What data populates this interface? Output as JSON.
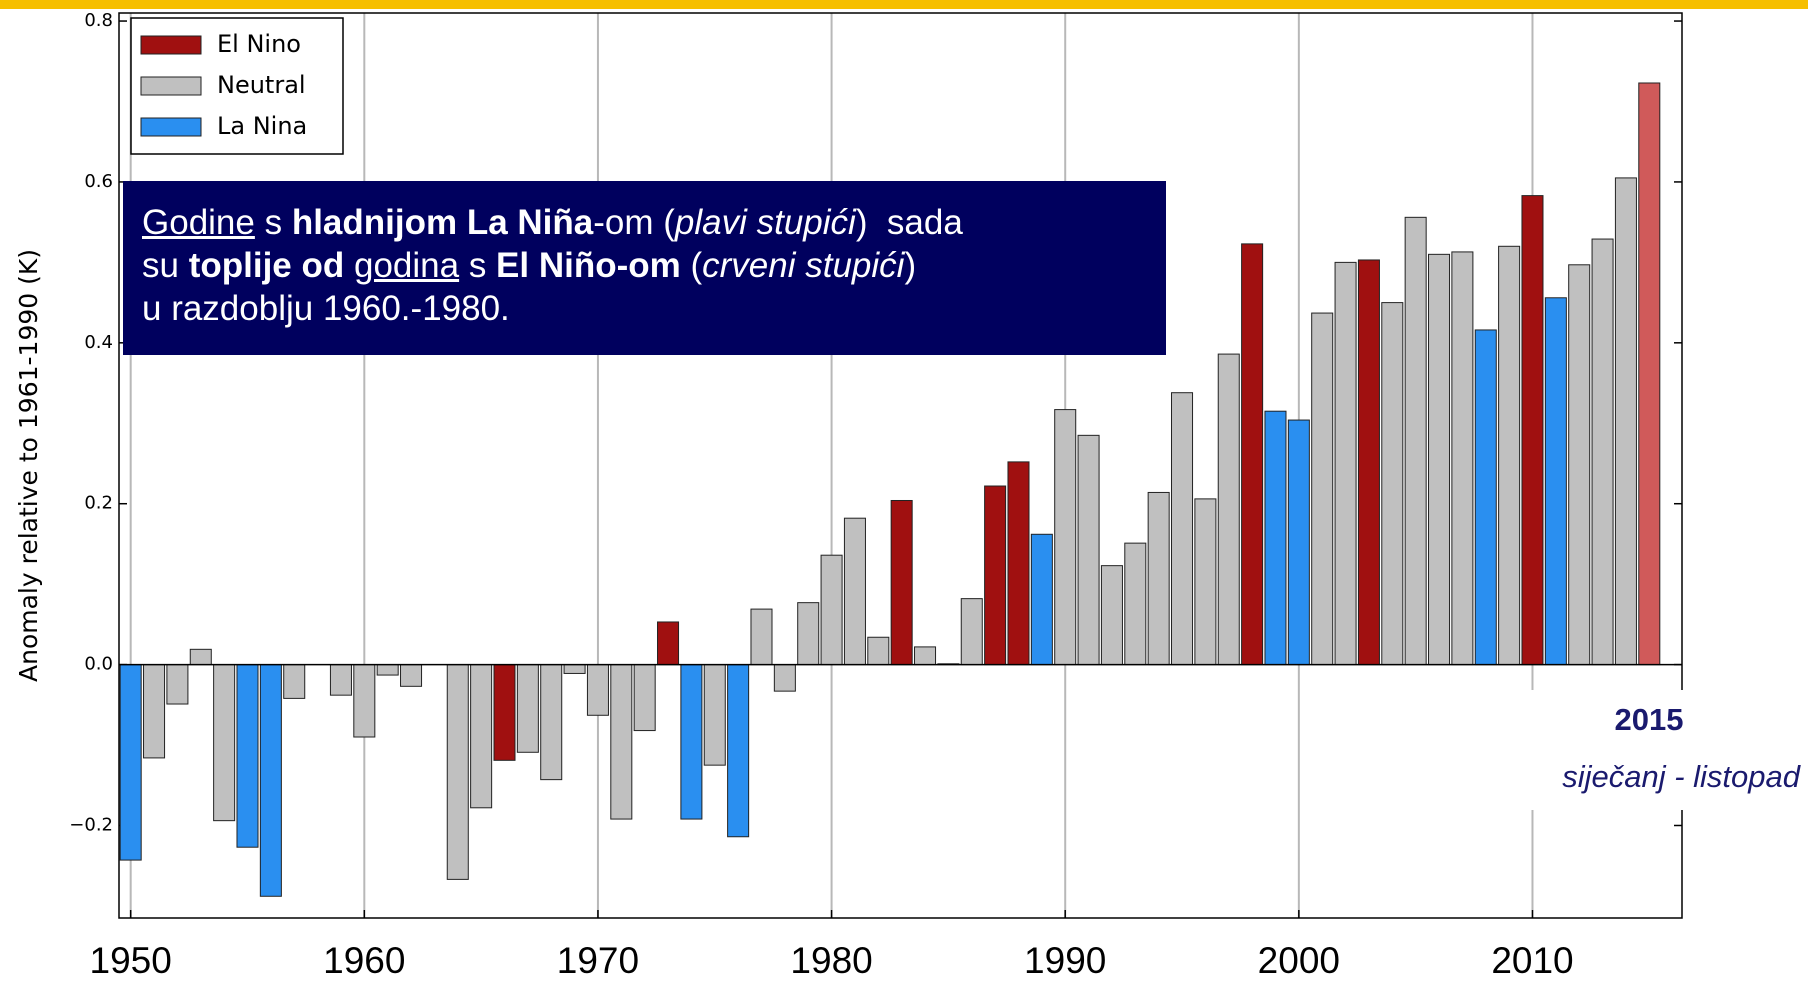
{
  "chart_data": {
    "type": "bar",
    "ylabel": "Anomaly relative to 1961-1990 (K)",
    "x": [
      1950,
      1951,
      1952,
      1953,
      1954,
      1955,
      1956,
      1957,
      1958,
      1959,
      1960,
      1961,
      1962,
      1963,
      1964,
      1965,
      1966,
      1967,
      1968,
      1969,
      1970,
      1971,
      1972,
      1973,
      1974,
      1975,
      1976,
      1977,
      1978,
      1979,
      1980,
      1981,
      1982,
      1983,
      1984,
      1985,
      1986,
      1987,
      1988,
      1989,
      1990,
      1991,
      1992,
      1993,
      1994,
      1995,
      1996,
      1997,
      1998,
      1999,
      2000,
      2001,
      2002,
      2003,
      2004,
      2005,
      2006,
      2007,
      2008,
      2009,
      2010,
      2011,
      2012,
      2013,
      2014,
      2015
    ],
    "series": [
      {
        "name": "El Nino",
        "color": "#a01010",
        "values": [
          null,
          null,
          null,
          null,
          null,
          null,
          null,
          null,
          null,
          null,
          null,
          null,
          null,
          null,
          null,
          null,
          -0.119,
          null,
          null,
          null,
          null,
          null,
          null,
          0.053,
          null,
          null,
          null,
          null,
          null,
          null,
          null,
          null,
          null,
          0.204,
          null,
          null,
          null,
          0.222,
          0.252,
          null,
          null,
          null,
          null,
          null,
          null,
          null,
          null,
          null,
          0.523,
          null,
          null,
          null,
          null,
          0.503,
          null,
          null,
          null,
          null,
          null,
          null,
          0.583,
          null,
          null,
          null,
          null,
          0.723
        ],
        "highlight": {
          "index": 65,
          "color": "#d05a5a"
        }
      },
      {
        "name": "Neutral",
        "color": "#c0c0c0",
        "values": [
          null,
          -0.116,
          -0.049,
          0.019,
          -0.194,
          null,
          null,
          -0.042,
          0.0,
          -0.038,
          -0.09,
          -0.013,
          -0.027,
          0.0,
          -0.267,
          -0.178,
          null,
          -0.109,
          -0.143,
          -0.011,
          -0.063,
          -0.192,
          -0.082,
          null,
          null,
          -0.125,
          null,
          0.069,
          -0.033,
          0.077,
          0.136,
          0.182,
          0.034,
          null,
          0.022,
          0.001,
          0.082,
          null,
          null,
          null,
          0.317,
          0.285,
          0.123,
          0.151,
          0.214,
          0.338,
          0.206,
          0.386,
          null,
          null,
          null,
          0.437,
          0.5,
          null,
          0.45,
          0.556,
          0.51,
          0.513,
          null,
          0.52,
          null,
          null,
          0.497,
          0.529,
          0.605,
          null
        ]
      },
      {
        "name": "La Nina",
        "color": "#2a8ff0",
        "values": [
          -0.243,
          null,
          null,
          null,
          null,
          -0.227,
          -0.288,
          null,
          null,
          null,
          null,
          null,
          null,
          null,
          null,
          null,
          null,
          null,
          null,
          null,
          null,
          null,
          null,
          null,
          -0.192,
          null,
          -0.214,
          null,
          null,
          null,
          null,
          null,
          null,
          null,
          null,
          null,
          null,
          null,
          null,
          0.162,
          null,
          null,
          null,
          null,
          null,
          null,
          null,
          null,
          null,
          0.315,
          0.304,
          null,
          null,
          null,
          null,
          null,
          null,
          null,
          0.416,
          null,
          null,
          0.456,
          null,
          null,
          null,
          null
        ]
      }
    ],
    "xlim": [
      1949.5,
      2016.4
    ],
    "xticks": [
      1950,
      1960,
      1970,
      1980,
      1990,
      2000,
      2010
    ],
    "ylim": [
      -0.315,
      0.81
    ],
    "yticks": [
      {
        "value": -0.2,
        "label": "−0.2"
      },
      {
        "value": 0,
        "label": "0.0"
      },
      0.2,
      0.4,
      0.6,
      0.8
    ],
    "grid": "x",
    "legend": "upper left",
    "annotation": {
      "lines": [
        [
          {
            "text": "Godine",
            "underline": true
          },
          {
            "text": " s "
          },
          {
            "text": "hladnijom La Niña",
            "bold": true
          },
          {
            "text": "-om ("
          },
          {
            "text": "plavi stupići",
            "italic": true
          },
          {
            "text": ")  sada"
          }
        ],
        [
          {
            "text": "su "
          },
          {
            "text": "toplije od",
            "bold": true
          },
          {
            "text": " "
          },
          {
            "text": "godina",
            "underline": true
          },
          {
            "text": " s "
          },
          {
            "text": "El Niño-om",
            "bold": true
          },
          {
            "text": " ("
          },
          {
            "text": "crveni stupići",
            "italic": true
          },
          {
            "text": ")"
          }
        ],
        [
          {
            "text": "u razdoblju 1960.-1980."
          }
        ]
      ]
    },
    "note_title": "2015",
    "note_subtitle": "siječanj - listopad"
  }
}
